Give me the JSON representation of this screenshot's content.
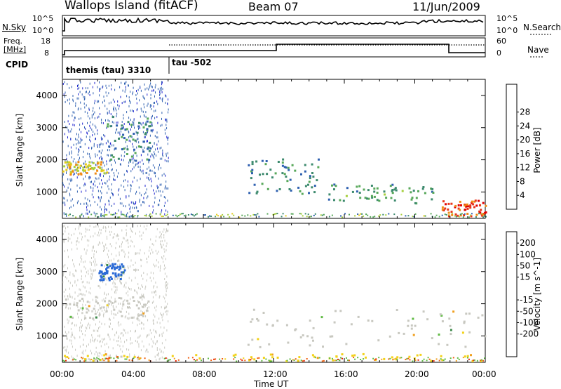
{
  "header": {
    "station": "Wallops Island (fitACF)",
    "beam": "Beam 07",
    "date": "11/Jun/2009"
  },
  "noise_panel": {
    "left_label": "N.Sky",
    "left_ticks": [
      "10^5",
      "10^0"
    ],
    "right_ticks": [
      "10^5",
      "10^0"
    ],
    "right_label": "N.Search"
  },
  "freq_panel": {
    "left_label_1": "Freq.",
    "left_label_2": "[MHz]",
    "left_ticks": [
      "18",
      "8"
    ],
    "right_ticks": [
      "60",
      "0"
    ],
    "right_label": "Nave"
  },
  "cpid_panel": {
    "label": "CPID",
    "mode_1": "themis (tau) 3310",
    "mode_2": "tau  -502"
  },
  "x_ticks": [
    "00:00",
    "04:00",
    "08:00",
    "12:00",
    "16:00",
    "20:00",
    "00:00"
  ],
  "x_label": "Time UT",
  "chart_data": [
    {
      "type": "heatmap",
      "name": "power",
      "xlabel": "Time UT",
      "ylabel": "Slant Range [km]",
      "xlim": [
        0,
        24
      ],
      "ylim": [
        180,
        4500
      ],
      "y_ticks": [
        1000,
        2000,
        3000,
        4000
      ],
      "colorbar": {
        "label": "Power [dB]",
        "ticks": [
          4,
          8,
          12,
          16,
          20,
          24,
          28
        ],
        "colors": [
          "#1e22cf",
          "#2f60b0",
          "#3d8a6e",
          "#58a85a",
          "#a6cf3e",
          "#e6cb1a",
          "#f08a14",
          "#e8361a",
          "#e00000"
        ]
      },
      "features": [
        {
          "time": [
            0.0,
            2.5
          ],
          "range": [
            1500,
            1900
          ],
          "value_db": 20
        },
        {
          "time": [
            2.5,
            5.0
          ],
          "range": [
            1900,
            3300
          ],
          "value_db": 8
        },
        {
          "time": [
            10.5,
            14.5
          ],
          "range": [
            900,
            2000
          ],
          "value_db": 8
        },
        {
          "time": [
            15.0,
            21.0
          ],
          "range": [
            600,
            1200
          ],
          "value_db": 10
        },
        {
          "time": [
            21.5,
            24.0
          ],
          "range": [
            200,
            700
          ],
          "value_db": 28
        }
      ]
    },
    {
      "type": "heatmap",
      "name": "velocity",
      "xlabel": "Time UT",
      "ylabel": "Slant Range [km]",
      "xlim": [
        0,
        24
      ],
      "ylim": [
        180,
        4500
      ],
      "y_ticks": [
        1000,
        2000,
        3000,
        4000
      ],
      "colorbar": {
        "label": "Velocity [m s^-1]",
        "ticks": [
          "200",
          "100",
          "50",
          "15",
          "-15",
          "-50",
          "-100",
          "-200"
        ],
        "colors": [
          "#1e22cf",
          "#2b6ad6",
          "#3c8a4a",
          "#60bb44",
          "#c8c8c0",
          "#c8c8c0",
          "#f2d21a",
          "#f0a020",
          "#f06010",
          "#e82000",
          "#e00000"
        ]
      },
      "features": [
        {
          "time": [
            0.0,
            5.0
          ],
          "range": [
            1500,
            2200
          ],
          "value_ms": 0
        },
        {
          "time": [
            2.0,
            3.5
          ],
          "range": [
            2700,
            3200
          ],
          "value_ms": 100
        },
        {
          "time": [
            10.5,
            24.0
          ],
          "range": [
            600,
            1800
          ],
          "value_ms": 0
        },
        {
          "time": [
            0.0,
            24.0
          ],
          "range": [
            180,
            400
          ],
          "value_ms": -50
        }
      ]
    }
  ]
}
